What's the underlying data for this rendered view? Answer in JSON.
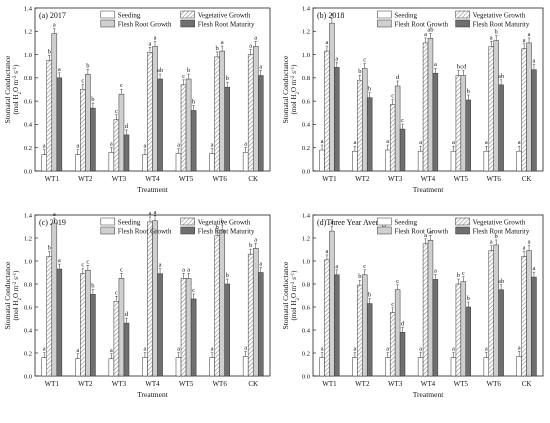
{
  "legend_items": [
    {
      "name": "Seeding",
      "pattern": "white"
    },
    {
      "name": "Vegetative Growth",
      "pattern": "hatch"
    },
    {
      "name": "Flesh Root Growth",
      "pattern": "light"
    },
    {
      "name": "Flesh Root Maturity",
      "pattern": "dark"
    }
  ],
  "colors": {
    "light": "#cfcfcf",
    "dark": "#6f6f6f",
    "hatch": "#8c8c8c",
    "axis": "#222222"
  },
  "chart_data": [
    {
      "type": "bar",
      "title": "(a) 2017",
      "xlabel": "Treatment",
      "ylabel": "Stomatal Conductance",
      "ylabel_unit": "(mol H2O m-2 s-1)",
      "ylim": [
        0,
        1.4
      ],
      "yticks": [
        "0.0",
        "0.2",
        "0.4",
        "0.6",
        "0.8",
        "1.0",
        "1.2",
        "1.4"
      ],
      "categories": [
        "WT1",
        "WT2",
        "WT3",
        "WT4",
        "WT5",
        "WT6",
        "CK"
      ],
      "legend": [
        "Seeding",
        "Vegetative Growth",
        "Flesh Root Growth",
        "Flesh Root Maturity"
      ],
      "legend_position": "top-right",
      "series": [
        {
          "name": "Seeding",
          "values": [
            0.14,
            0.14,
            0.16,
            0.14,
            0.15,
            0.15,
            0.16
          ],
          "letters": [
            "a",
            "a",
            "a",
            "a",
            "a",
            "a",
            "a"
          ]
        },
        {
          "name": "Vegetative Growth",
          "values": [
            0.95,
            0.7,
            0.44,
            1.02,
            0.74,
            0.98,
            1.0
          ],
          "letters": [
            "b",
            "c",
            "c",
            "a",
            "c",
            "b",
            "a"
          ]
        },
        {
          "name": "Flesh Root Growth",
          "values": [
            1.18,
            0.83,
            0.66,
            1.07,
            0.79,
            1.03,
            1.07
          ],
          "letters": [
            "a",
            "b",
            "c",
            "a",
            "b",
            "a",
            "a"
          ]
        },
        {
          "name": "Flesh Root Maturity",
          "values": [
            0.8,
            0.54,
            0.31,
            0.79,
            0.52,
            0.72,
            0.82
          ],
          "letters": [
            "a",
            "b",
            "d",
            "ab",
            "b",
            "b",
            "a"
          ]
        }
      ]
    },
    {
      "type": "bar",
      "title": "(b) 2018",
      "xlabel": "Treatment",
      "ylabel": "Stomatal Conductance",
      "ylabel_unit": "(mol H2O m-2 s-1)",
      "ylim": [
        0,
        1.4
      ],
      "yticks": [
        "0.0",
        "0.2",
        "0.4",
        "0.6",
        "0.8",
        "1.0",
        "1.2",
        "1.4"
      ],
      "categories": [
        "WT1",
        "WT2",
        "WT3",
        "WT4",
        "WT5",
        "WT6",
        "CK"
      ],
      "legend": [
        "Seeding",
        "Vegetative Growth",
        "Flesh Root Growth",
        "Flesh Root Maturity"
      ],
      "legend_position": "top-right",
      "series": [
        {
          "name": "Seeding",
          "values": [
            0.18,
            0.17,
            0.18,
            0.17,
            0.17,
            0.17,
            0.17
          ],
          "letters": [
            "a",
            "a",
            "a",
            "a",
            "a",
            "a",
            "a"
          ]
        },
        {
          "name": "Vegetative Growth",
          "values": [
            1.03,
            0.78,
            0.57,
            1.1,
            0.82,
            1.07,
            1.05
          ],
          "letters": [
            "a",
            "b",
            "c",
            "a",
            "b",
            "a",
            "a"
          ]
        },
        {
          "name": "Flesh Root Growth",
          "values": [
            1.27,
            0.88,
            0.73,
            1.14,
            0.82,
            1.12,
            1.1
          ],
          "letters": [
            "a",
            "c",
            "d",
            "ab",
            "cd",
            "b",
            "a"
          ]
        },
        {
          "name": "Flesh Root Maturity",
          "values": [
            0.89,
            0.63,
            0.36,
            0.84,
            0.61,
            0.74,
            0.87
          ],
          "letters": [
            "a",
            "b",
            "c",
            "a",
            "b",
            "ab",
            "a"
          ]
        }
      ]
    },
    {
      "type": "bar",
      "title": "(c) 2019",
      "xlabel": "Treatment",
      "ylabel": "Stomatal Conductance",
      "ylabel_unit": "(mol H2O m-2 s-1)",
      "ylim": [
        0,
        1.4
      ],
      "yticks": [
        "0.0",
        "0.2",
        "0.4",
        "0.6",
        "0.8",
        "1.0",
        "1.2",
        "1.4"
      ],
      "categories": [
        "WT1",
        "WT2",
        "WT3",
        "WT4",
        "WT5",
        "WT6",
        "CK"
      ],
      "legend": [
        "Seeding",
        "Vegetative Growth",
        "Flesh Root Growth",
        "Flesh Root Maturity"
      ],
      "legend_position": "top-right",
      "series": [
        {
          "name": "Seeding",
          "values": [
            0.16,
            0.15,
            0.15,
            0.16,
            0.16,
            0.16,
            0.17
          ],
          "letters": [
            "a",
            "a",
            "a",
            "a",
            "a",
            "a",
            "a"
          ]
        },
        {
          "name": "Vegetative Growth",
          "values": [
            1.04,
            0.89,
            0.65,
            1.34,
            0.85,
            1.22,
            1.06
          ],
          "letters": [
            "b",
            "c",
            "c",
            "a",
            "a",
            "b",
            "b"
          ]
        },
        {
          "name": "Flesh Root Growth",
          "values": [
            1.33,
            0.92,
            0.85,
            1.35,
            0.85,
            1.27,
            1.11
          ],
          "letters": [
            "a",
            "c",
            "c",
            "a",
            "a",
            "b",
            "a"
          ]
        },
        {
          "name": "Flesh Root Maturity",
          "values": [
            0.93,
            0.71,
            0.46,
            0.89,
            0.67,
            0.8,
            0.9
          ],
          "letters": [
            "a",
            "b",
            "d",
            "a",
            "c",
            "b",
            "a"
          ]
        }
      ]
    },
    {
      "type": "bar",
      "title": "(d)Three Year Average",
      "xlabel": "Treatment",
      "ylabel": "Stomatal Conductance",
      "ylabel_unit": "(mol H2O m-2 s-1)",
      "ylim": [
        0,
        1.4
      ],
      "yticks": [
        "0.0",
        "0.2",
        "0.4",
        "0.6",
        "0.8",
        "1.0",
        "1.2",
        "1.4"
      ],
      "categories": [
        "WT1",
        "WT2",
        "WT3",
        "WT4",
        "WT5",
        "WT6",
        "CK"
      ],
      "legend": [
        "Seeding",
        "Vegetative Growth",
        "Flesh Root Growth",
        "Flesh Root Maturity"
      ],
      "legend_position": "top-right",
      "series": [
        {
          "name": "Seeding",
          "values": [
            0.16,
            0.16,
            0.16,
            0.16,
            0.16,
            0.16,
            0.17
          ],
          "letters": [
            "a",
            "a",
            "a",
            "a",
            "a",
            "a",
            "a"
          ]
        },
        {
          "name": "Vegetative Growth",
          "values": [
            1.01,
            0.79,
            0.55,
            1.15,
            0.8,
            1.09,
            1.04
          ],
          "letters": [
            "a",
            "b",
            "c",
            "a",
            "b",
            "a",
            "a"
          ]
        },
        {
          "name": "Flesh Root Growth",
          "values": [
            1.26,
            0.88,
            0.75,
            1.18,
            0.82,
            1.14,
            1.09
          ],
          "letters": [
            "a",
            "c",
            "c",
            "a",
            "c",
            "b",
            "a"
          ]
        },
        {
          "name": "Flesh Root Maturity",
          "values": [
            0.88,
            0.63,
            0.38,
            0.84,
            0.6,
            0.75,
            0.86
          ],
          "letters": [
            "a",
            "b",
            "d",
            "a",
            "b",
            "ab",
            "a"
          ]
        }
      ]
    }
  ]
}
